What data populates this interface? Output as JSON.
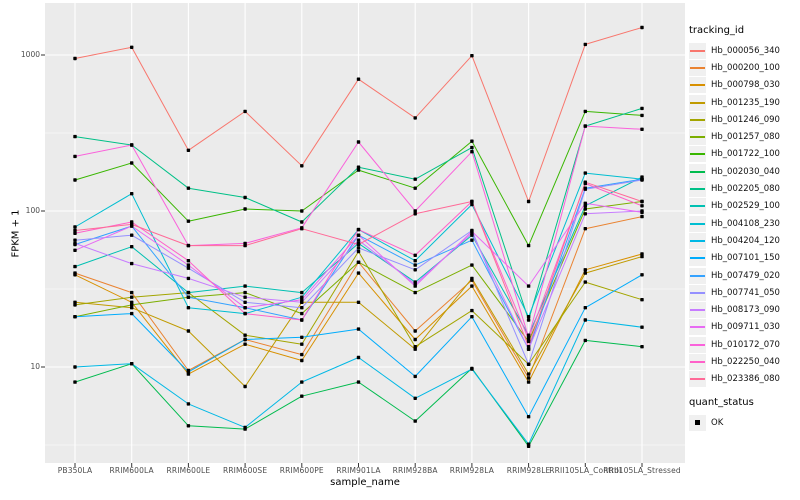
{
  "axes": {
    "x_title": "sample_name",
    "y_title": "FPKM + 1",
    "y_ticks": [
      {
        "label": "1000",
        "value": 1000
      },
      {
        "label": "100",
        "value": 100
      },
      {
        "label": "10",
        "value": 10
      }
    ]
  },
  "legend": {
    "tracking_title": "tracking_id",
    "quant_title": "quant_status",
    "quant_value": "OK"
  },
  "colors": {
    "panel_bg": "#EBEBEB",
    "grid": "#FFFFFF",
    "tick": "#333333",
    "axis_text": "#4D4D4D",
    "point": "#000000",
    "legend_key_bg": "#F0F0F0"
  },
  "chart_data": {
    "type": "line",
    "title": "",
    "xlabel": "sample_name",
    "ylabel": "FPKM + 1",
    "y_scale": "log10",
    "ylim": [
      2.4,
      2100
    ],
    "grid": true,
    "legend_position": "right",
    "point_marker": {
      "shape": "square",
      "color": "#000000",
      "meaning": "quant_status OK"
    },
    "y_gridlines": {
      "major": [
        10,
        100,
        1000
      ],
      "minor": [
        3.162,
        31.623,
        316.228
      ]
    },
    "categories": [
      "PB350LA",
      "RRIM600LA",
      "RRIM600LE",
      "RRIM600SE",
      "RRIM600PE",
      "RRIM901LA",
      "RRIM928BA",
      "RRIM928LA",
      "RRIM928LE",
      "RRII105LA_Control",
      "RRII105LA_Stressed"
    ],
    "series": [
      {
        "name": "Hb_000056_340",
        "color": "#F8766D",
        "values": [
          950,
          1120,
          245,
          435,
          195,
          700,
          395,
          990,
          115,
          1170,
          1500
        ]
      },
      {
        "name": "Hb_000200_100",
        "color": "#EA8331",
        "values": [
          40,
          30,
          9.5,
          15,
          12,
          47,
          17,
          36,
          8.5,
          77,
          92
        ]
      },
      {
        "name": "Hb_000798_030",
        "color": "#D89000",
        "values": [
          39,
          26,
          9,
          14,
          11,
          40,
          15,
          33,
          8,
          42,
          53
        ]
      },
      {
        "name": "Hb_001235_190",
        "color": "#C09B00",
        "values": [
          26,
          24,
          17,
          7.5,
          26,
          26,
          13,
          37,
          9,
          40,
          51
        ]
      },
      {
        "name": "Hb_001246_090",
        "color": "#A3A500",
        "values": [
          25,
          28,
          30,
          16,
          14,
          55,
          13.5,
          23,
          10.4,
          35,
          27
        ]
      },
      {
        "name": "Hb_001257_080",
        "color": "#7CAE00",
        "values": [
          21,
          25,
          28,
          30,
          22,
          47,
          30,
          45,
          14.6,
          103,
          115
        ]
      },
      {
        "name": "Hb_001722_100",
        "color": "#39B600",
        "values": [
          158,
          203,
          86,
          103,
          100,
          183,
          140,
          280,
          60,
          435,
          410
        ]
      },
      {
        "name": "Hb_002030_040",
        "color": "#00BB4E",
        "values": [
          8,
          10.5,
          4.2,
          4.0,
          6.5,
          8,
          4.5,
          9.8,
          3.1,
          14.8,
          13.5
        ]
      },
      {
        "name": "Hb_002205_080",
        "color": "#00C087",
        "values": [
          300,
          265,
          140,
          122,
          85,
          191,
          160,
          255,
          20,
          350,
          455
        ]
      },
      {
        "name": "Hb_002529_100",
        "color": "#00C0B2",
        "values": [
          44,
          59,
          30,
          33,
          30,
          62,
          35,
          70,
          16,
          108,
          165
        ]
      },
      {
        "name": "Hb_004108_230",
        "color": "#00BED1",
        "values": [
          79,
          129,
          24,
          22,
          28,
          76,
          48,
          110,
          21,
          175,
          160
        ]
      },
      {
        "name": "Hb_004204_120",
        "color": "#00B8E5",
        "values": [
          10,
          10.5,
          5.8,
          4.1,
          8,
          11.5,
          6.3,
          9.7,
          3.2,
          20,
          18
        ]
      },
      {
        "name": "Hb_007101_150",
        "color": "#00ACFC",
        "values": [
          21,
          22,
          9.3,
          15,
          15.5,
          17.5,
          8.7,
          21,
          4.8,
          24,
          39
        ]
      },
      {
        "name": "Hb_007479_020",
        "color": "#35A2FF",
        "values": [
          61,
          80,
          28,
          24,
          20,
          70,
          45,
          65,
          13,
          140,
          160
        ]
      },
      {
        "name": "Hb_007741_050",
        "color": "#9590FF",
        "values": [
          65,
          70,
          43,
          26,
          24,
          58,
          42,
          75,
          10.4,
          138,
          158
        ]
      },
      {
        "name": "Hb_008173_090",
        "color": "#C77CFF",
        "values": [
          62,
          46,
          37,
          28,
          26,
          65,
          34,
          72,
          13,
          96,
          100
        ]
      },
      {
        "name": "Hb_009711_030",
        "color": "#E76BF3",
        "values": [
          56,
          80,
          45,
          24,
          27,
          70,
          33,
          74,
          33,
          112,
          98
        ]
      },
      {
        "name": "Hb_010172_070",
        "color": "#FA62DB",
        "values": [
          224,
          265,
          60,
          62,
          78,
          277,
          100,
          240,
          15.5,
          350,
          334
        ]
      },
      {
        "name": "Hb_022250_040",
        "color": "#FF61C9",
        "values": [
          72,
          85,
          48,
          22,
          20,
          76,
          52,
          115,
          15,
          150,
          108
        ]
      },
      {
        "name": "Hb_023386_080",
        "color": "#FF6A98",
        "values": [
          75,
          82,
          60,
          60,
          77,
          61,
          96,
          115,
          13.5,
          153,
          115
        ]
      }
    ],
    "quant_status": "OK"
  }
}
